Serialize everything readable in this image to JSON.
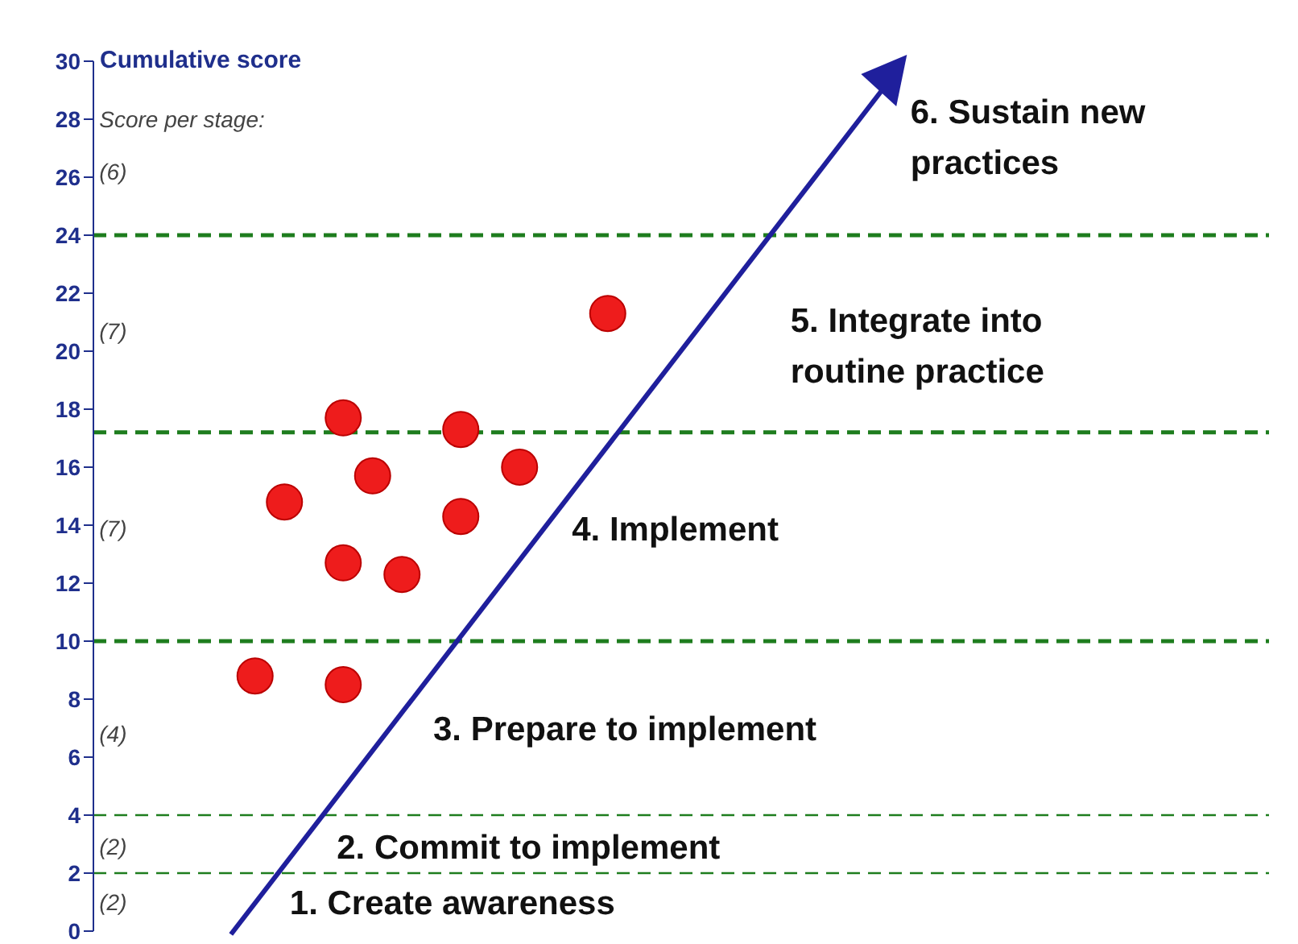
{
  "chart_data": {
    "type": "scatter",
    "ylabel": "Cumulative score",
    "categories": [
      null,
      null,
      null,
      null,
      null,
      null,
      null,
      null,
      null,
      null,
      null,
      null,
      null,
      null,
      null,
      null,
      null,
      null,
      null,
      null,
      null,
      null,
      null,
      null,
      null,
      null,
      null,
      null,
      null,
      null,
      null,
      null,
      null,
      null,
      null,
      null,
      null,
      null,
      null,
      null
    ],
    "series": [
      {
        "color": "#ee1c1c",
        "values": [
          null,
          null,
          null,
          null,
          null,
          8.8,
          14.8,
          null,
          17.7,
          15.7,
          12.3,
          null,
          17.3,
          null,
          16.0,
          null,
          null,
          21.3,
          null,
          null,
          null,
          null,
          null,
          null,
          null,
          null,
          null,
          null,
          null,
          null,
          null,
          null,
          null,
          null,
          null,
          null,
          null,
          null,
          null,
          null
        ]
      },
      {
        "color": "#ee1c1c",
        "values": [
          null,
          null,
          null,
          null,
          null,
          null,
          null,
          null,
          12.7,
          null,
          null,
          null,
          14.3,
          null,
          null,
          null,
          null,
          null,
          null,
          null,
          null,
          null,
          null,
          null,
          null,
          null,
          null,
          null,
          null,
          null,
          null,
          null,
          null,
          null,
          null,
          null,
          null,
          null,
          null,
          null
        ]
      },
      {
        "color": "#ee1c1c",
        "values": [
          null,
          null,
          null,
          null,
          null,
          null,
          null,
          null,
          8.5,
          null,
          null,
          null,
          null,
          null,
          null,
          null,
          null,
          null,
          null,
          null,
          null,
          null,
          null,
          null,
          null,
          null,
          null,
          null,
          null,
          null,
          null,
          null,
          null,
          null,
          null,
          null,
          null,
          null,
          null,
          null
        ]
      }
    ],
    "marker": "circle",
    "ylim": [
      0,
      30
    ],
    "yticks": [
      0,
      2,
      4,
      6,
      8,
      10,
      12,
      14,
      16,
      18,
      20,
      22,
      24,
      26,
      28,
      30
    ],
    "tick_labels": "y",
    "grid": false,
    "ref_lines": [
      {
        "axis": "y",
        "value": 24,
        "color": "#1e7d1e",
        "line_style": "dashed"
      },
      {
        "axis": "y",
        "value": 17.2,
        "color": "#1e7d1e",
        "line_style": "dashed"
      },
      {
        "axis": "y",
        "value": 10,
        "color": "#1e7d1e",
        "line_style": "dashed"
      },
      {
        "axis": "y",
        "value": 4,
        "color": "#1e7d1e",
        "line_style": "dashed"
      },
      {
        "axis": "y",
        "value": 2,
        "color": "#1e7d1e",
        "line_style": "dashed"
      }
    ],
    "annotations": [
      "Score per stage:",
      "(6)",
      "(7)",
      "(7)",
      "(4)",
      "(2)",
      "(2)",
      "1. Create awareness",
      "2. Commit to implement",
      "3. Prepare to implement",
      "4. Implement",
      "5. Integrate into\nroutine practice",
      "6. Sustain new\npractices"
    ]
  }
}
